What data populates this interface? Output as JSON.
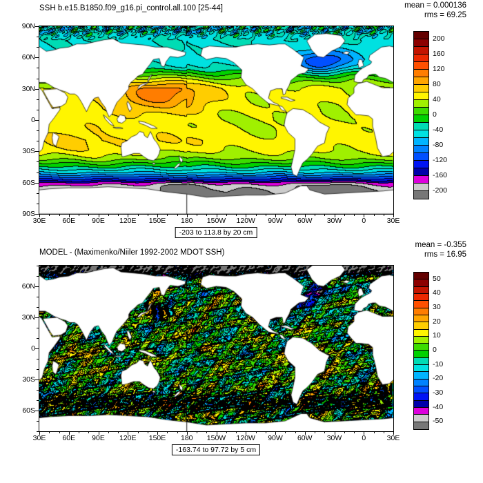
{
  "palette": {
    "over": "#640000",
    "under": "#777777",
    "colors": [
      "#8c0000",
      "#c31400",
      "#eb2800",
      "#ff5000",
      "#ff7d00",
      "#ffa500",
      "#ffcd00",
      "#fff500",
      "#a0f000",
      "#3cdc00",
      "#00d200",
      "#00dcb4",
      "#00e1e1",
      "#00b4ff",
      "#0082ff",
      "#0050ff",
      "#0014f5",
      "#0000aa",
      "#dc00dc",
      "#cccccc"
    ]
  },
  "chart_data": [
    {
      "type": "heatmap",
      "subtype": "global-filled-contour-map",
      "title": "SSH b.e15.B1850.f09_g16.pi_control.all.100 [25-44]",
      "stats": {
        "mean": 0.000136,
        "rms": 69.25,
        "mean_label": "mean = 0.000136",
        "rms_label": "rms = 69.25"
      },
      "caption": "-203 to 113.8 by 20 cm",
      "field": {
        "variable": "SSH",
        "min": -203,
        "max": 113.8,
        "contour_interval": 20,
        "units": "cm"
      },
      "lon_labels": [
        "30E",
        "60E",
        "90E",
        "120E",
        "150E",
        "180",
        "150W",
        "120W",
        "90W",
        "60W",
        "30W",
        "0",
        "30E"
      ],
      "lat_labels": [
        "90N",
        "60N",
        "30N",
        "0",
        "30S",
        "60S",
        "90S"
      ],
      "lat_ticks": [
        90,
        60,
        30,
        0,
        -30,
        -60,
        -90
      ],
      "lat_range": [
        90,
        -90
      ],
      "colorbar": {
        "max": 200,
        "step": 20,
        "labels": [
          "200",
          "160",
          "120",
          "80",
          "40",
          "0",
          "-40",
          "-80",
          "-120",
          "-160",
          "-200"
        ]
      }
    },
    {
      "type": "heatmap",
      "subtype": "global-filled-contour-map",
      "title": "MODEL - (Maximenko/Niiler 1992-2002 MDOT SSH)",
      "stats": {
        "mean": -0.355,
        "rms": 16.95,
        "mean_label": "mean = -0.355",
        "rms_label": "rms = 16.95"
      },
      "caption": "-163.74 to 97.72 by 5 cm",
      "field": {
        "variable": "MODEL minus OBS SSH",
        "min": -163.74,
        "max": 97.72,
        "contour_interval": 5,
        "units": "cm"
      },
      "lon_labels": [
        "30E",
        "60E",
        "90E",
        "120E",
        "150E",
        "180",
        "150W",
        "120W",
        "90W",
        "60W",
        "30W",
        "0",
        "30E"
      ],
      "lat_labels": [
        "60N",
        "30N",
        "0",
        "30S",
        "60S"
      ],
      "lat_ticks": [
        60,
        30,
        0,
        -30,
        -60
      ],
      "lat_range": [
        80,
        -80
      ],
      "colorbar": {
        "max": 50,
        "step": 5,
        "labels": [
          "50",
          "40",
          "30",
          "20",
          "10",
          "0",
          "-10",
          "-20",
          "-30",
          "-40",
          "-50"
        ]
      }
    }
  ]
}
